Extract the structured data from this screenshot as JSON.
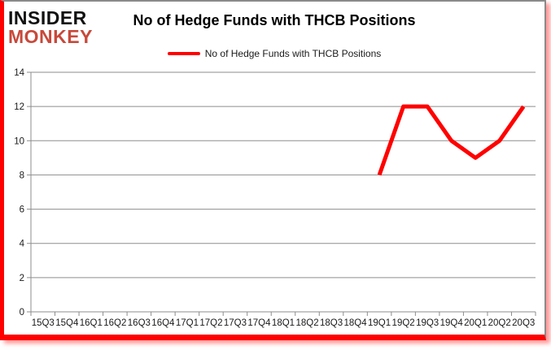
{
  "header": {
    "logo_line1": "INSIDER",
    "logo_line2": "MONKEY",
    "title": "No of Hedge Funds with THCB Positions"
  },
  "legend": {
    "label": "No of Hedge Funds with THCB Positions"
  },
  "colors": {
    "series_line": "#ff0000",
    "logo_black": "#111111",
    "logo_red": "#c8493a",
    "grid": "#8e8e8e",
    "axis_text": "#1a1a1a",
    "frame_red": "#fe0000",
    "frame_gray": "#8a8a8a"
  },
  "chart_data": {
    "type": "line",
    "title": "No of Hedge Funds with THCB Positions",
    "categories": [
      "15Q3",
      "15Q4",
      "16Q1",
      "16Q2",
      "16Q3",
      "16Q4",
      "17Q1",
      "17Q2",
      "17Q3",
      "17Q4",
      "18Q1",
      "18Q2",
      "18Q3",
      "18Q4",
      "19Q1",
      "19Q2",
      "19Q3",
      "19Q4",
      "20Q1",
      "20Q2",
      "20Q3"
    ],
    "series": [
      {
        "name": "No of Hedge Funds with THCB Positions",
        "values": [
          null,
          null,
          null,
          null,
          null,
          null,
          null,
          null,
          null,
          null,
          null,
          null,
          null,
          null,
          8,
          12,
          12,
          10,
          9,
          10,
          12
        ]
      }
    ],
    "xlabel": "",
    "ylabel": "",
    "ylim": [
      0,
      14
    ],
    "yticks": [
      0,
      2,
      4,
      6,
      8,
      10,
      12,
      14
    ],
    "grid": true,
    "legend_position": "top"
  }
}
